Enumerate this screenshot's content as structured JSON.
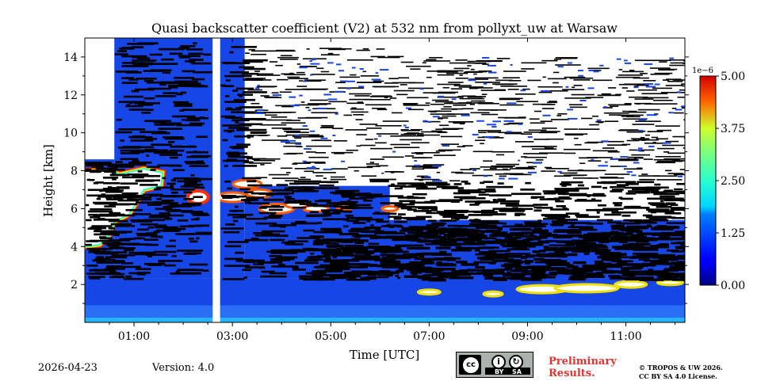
{
  "chart_data": {
    "type": "heatmap",
    "title": "Quasi backscatter coefficient (V2) at 532 nm from pollyxt_uw at Warsaw",
    "xlabel": "Time [UTC]",
    "ylabel": "Height [km]",
    "xlim": [
      0.0,
      12.2
    ],
    "ylim": [
      0.0,
      15.0
    ],
    "x_ticks": [
      1,
      3,
      5,
      7,
      9,
      11
    ],
    "x_tick_labels": [
      "01:00",
      "03:00",
      "05:00",
      "07:00",
      "09:00",
      "11:00"
    ],
    "y_ticks": [
      2,
      4,
      6,
      8,
      10,
      12,
      14
    ],
    "y_tick_labels": [
      "2",
      "4",
      "6",
      "8",
      "10",
      "12",
      "14"
    ],
    "colorbar": {
      "min": 0.0,
      "max": 5.0,
      "ticks": [
        0.0,
        1.25,
        2.5,
        3.75,
        5.0
      ],
      "tick_labels": [
        "0.00",
        "1.25",
        "2.50",
        "3.75",
        "5.00"
      ],
      "offset_label": "1e−6",
      "colormap": "jet"
    },
    "data_gap": {
      "start": 2.6,
      "end": 2.75
    },
    "features": [
      {
        "name": "boundary layer",
        "time_start": 0.0,
        "time_end": 12.2,
        "height_top": 2.0
      },
      {
        "name": "cloud",
        "time_start": 0.0,
        "time_end": 1.6,
        "height_bottom": 4.0,
        "height_top": 8.0
      },
      {
        "name": "cloud",
        "time_start": 2.1,
        "time_end": 2.5,
        "height_bottom": 6.3,
        "height_top": 6.9
      },
      {
        "name": "cloud",
        "time_start": 2.8,
        "time_end": 4.5,
        "height_bottom": 5.8,
        "height_top": 7.5
      },
      {
        "name": "low cloud",
        "time_start": 8.7,
        "time_end": 12.2,
        "height_bottom": 1.5,
        "height_top": 2.2
      }
    ]
  },
  "footer": {
    "date": "2026-04-23",
    "version": "Version: 4.0",
    "preliminary_line1": "Preliminary",
    "preliminary_line2": "Results.",
    "copyright_line1": "© TROPOS & UW 2026.",
    "copyright_line2": "CC BY SA 4.0 License.",
    "cc_by_label": "BY",
    "cc_sa_label": "SA",
    "cc_symbol": "cc"
  },
  "colors": {
    "prelim_text": "#e8312f"
  }
}
